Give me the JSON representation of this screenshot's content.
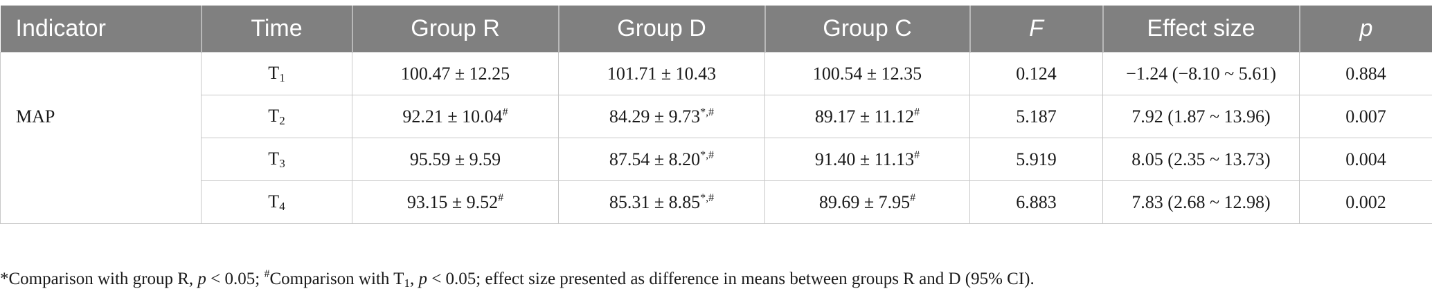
{
  "table": {
    "headers": [
      "Indicator",
      "Time",
      "Group R",
      "Group D",
      "Group C",
      "F",
      "Effect size",
      "p"
    ],
    "indicator": "MAP",
    "rows": [
      {
        "time_base": "T",
        "time_sub": "1",
        "r": "100.47 ± 12.25",
        "r_sup": "",
        "d": "101.71 ± 10.43",
        "d_sup": "",
        "c": "100.54 ± 12.35",
        "c_sup": "",
        "f": "0.124",
        "effect": "−1.24 (−8.10 ~ 5.61)",
        "p": "0.884"
      },
      {
        "time_base": "T",
        "time_sub": "2",
        "r": "92.21 ± 10.04",
        "r_sup": "#",
        "d": "84.29 ± 9.73",
        "d_sup": "*,#",
        "c": "89.17 ± 11.12",
        "c_sup": "#",
        "f": "5.187",
        "effect": "7.92 (1.87 ~ 13.96)",
        "p": "0.007"
      },
      {
        "time_base": "T",
        "time_sub": "3",
        "r": "95.59 ± 9.59",
        "r_sup": "",
        "d": "87.54 ± 8.20",
        "d_sup": "*,#",
        "c": "91.40 ± 11.13",
        "c_sup": "#",
        "f": "5.919",
        "effect": "8.05 (2.35 ~ 13.73)",
        "p": "0.004"
      },
      {
        "time_base": "T",
        "time_sub": "4",
        "r": "93.15 ± 9.52",
        "r_sup": "#",
        "d": "85.31 ± 8.85",
        "d_sup": "*,#",
        "c": "89.69 ± 7.95",
        "c_sup": "#",
        "f": "6.883",
        "effect": "7.83 (2.68 ~ 12.98)",
        "p": "0.002"
      }
    ]
  },
  "footnote": {
    "star": "*",
    "part1": "Comparison with group R, ",
    "p1": "p",
    "part2": " < 0.05; ",
    "hash": "#",
    "part3": "Comparison with T",
    "t_sub": "1",
    "part4": ", ",
    "p2": "p",
    "part5": " < 0.05; effect size presented as difference in means between groups R and D (95% CI)."
  }
}
